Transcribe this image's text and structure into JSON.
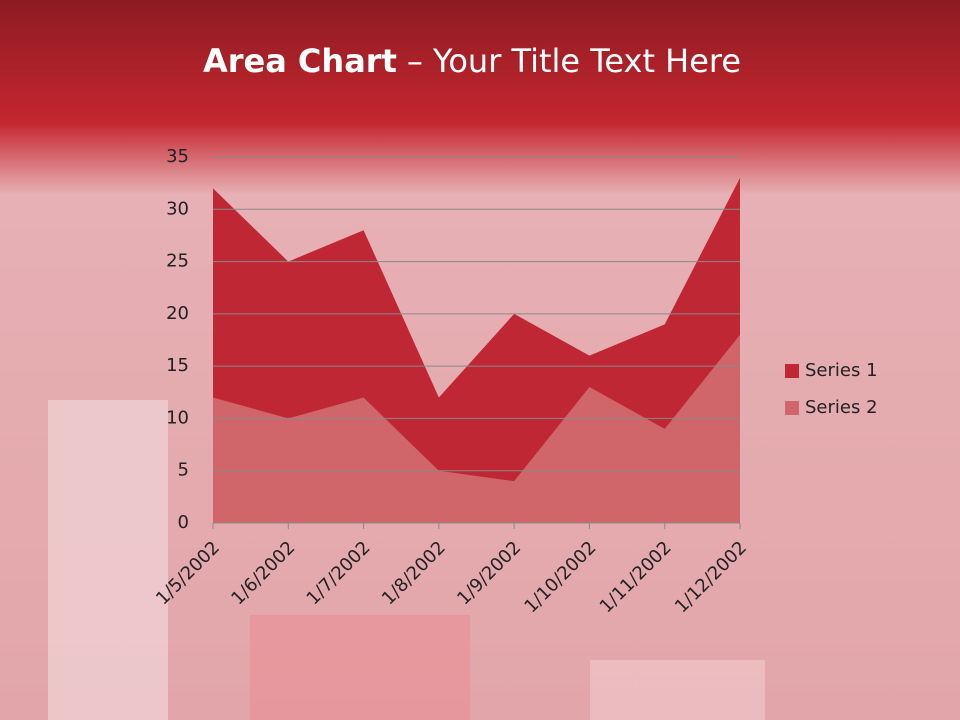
{
  "chart_data": {
    "type": "area",
    "title": [
      "Area Chart",
      "– Your Title Text Here"
    ],
    "categories": [
      "1/5/2002",
      "1/6/2002",
      "1/7/2002",
      "1/8/2002",
      "1/9/2002",
      "1/10/2002",
      "1/11/2002",
      "1/12/2002"
    ],
    "series": [
      {
        "name": "Series 1",
        "color": "#be2733",
        "values": [
          32,
          25,
          28,
          12,
          20,
          16,
          19,
          33
        ]
      },
      {
        "name": "Series 2",
        "color": "#d0656a",
        "values": [
          12,
          10,
          12,
          5,
          4,
          13,
          9,
          18
        ]
      }
    ],
    "ylim": [
      0,
      35
    ],
    "yticks": [
      0,
      5,
      10,
      15,
      20,
      25,
      30,
      35
    ],
    "grid": true,
    "legend": "right"
  }
}
